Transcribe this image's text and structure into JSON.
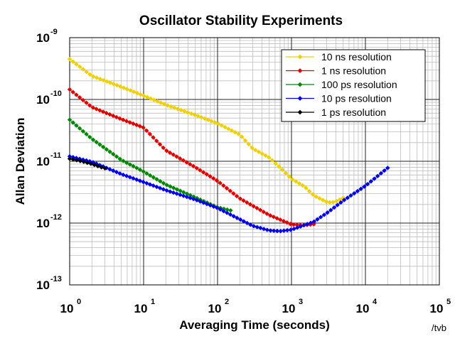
{
  "chart_data": {
    "type": "line",
    "title": "Oscillator Stability Experiments",
    "xlabel": "Averaging Time (seconds)",
    "ylabel": "Allan Deviation",
    "xscale": "log",
    "yscale": "log",
    "xlim": [
      1,
      100000
    ],
    "ylim": [
      1e-13,
      1e-09
    ],
    "x_ticks": [
      {
        "base": "10",
        "exp": "0"
      },
      {
        "base": "10",
        "exp": "1"
      },
      {
        "base": "10",
        "exp": "2"
      },
      {
        "base": "10",
        "exp": "3"
      },
      {
        "base": "10",
        "exp": "4"
      },
      {
        "base": "10",
        "exp": "5"
      }
    ],
    "y_ticks": [
      {
        "base": "10",
        "exp": "-13"
      },
      {
        "base": "10",
        "exp": "-12"
      },
      {
        "base": "10",
        "exp": "-11"
      },
      {
        "base": "10",
        "exp": "-10"
      },
      {
        "base": "10",
        "exp": "-9"
      }
    ],
    "grid": true,
    "legend_position": "top-right",
    "credit": "/tvb",
    "series": [
      {
        "name": "10 ns resolution",
        "color": "#f0d000",
        "x": [
          1,
          2,
          5,
          10,
          20,
          50,
          100,
          200,
          300,
          500,
          800,
          1000,
          1500,
          2000,
          3000,
          3500,
          4000,
          5000
        ],
        "y": [
          4.5e-10,
          2.4e-10,
          1.6e-10,
          1.15e-10,
          8.2e-11,
          5.6e-11,
          4.1e-11,
          2.7e-11,
          1.6e-11,
          1.15e-11,
          6.8e-12,
          5.2e-12,
          3.9e-12,
          2.8e-12,
          2.2e-12,
          2.15e-12,
          2.25e-12,
          2.55e-12
        ]
      },
      {
        "name": "1 ns resolution",
        "color": "#e00000",
        "x": [
          1,
          2,
          5,
          10,
          20,
          50,
          100,
          200,
          500,
          1000,
          1500,
          2000
        ],
        "y": [
          1.45e-10,
          7.5e-11,
          4.8e-11,
          3.5e-11,
          1.5e-11,
          8e-12,
          4.8e-12,
          2.5e-12,
          1.35e-12,
          9.5e-13,
          9.2e-13,
          9.6e-13
        ]
      },
      {
        "name": "100 ps resolution",
        "color": "#008800",
        "x": [
          1,
          2,
          5,
          10,
          20,
          50,
          100,
          150
        ],
        "y": [
          4.7e-11,
          2.3e-11,
          1.05e-11,
          6.8e-12,
          4.2e-12,
          2.6e-12,
          1.8e-12,
          1.6e-12
        ]
      },
      {
        "name": "10 ps resolution",
        "color": "#0000ee",
        "x": [
          1,
          2,
          5,
          10,
          20,
          50,
          100,
          200,
          300,
          500,
          700,
          1000,
          2000,
          3000,
          5000,
          10000,
          20000
        ],
        "y": [
          1.2e-11,
          9.8e-12,
          6.2e-12,
          4.6e-12,
          3.4e-12,
          2.4e-12,
          1.75e-12,
          1.15e-12,
          9e-13,
          7.6e-13,
          7.4e-13,
          7.8e-13,
          1.05e-12,
          1.45e-12,
          2.3e-12,
          4e-12,
          7.8e-12
        ]
      },
      {
        "name": "1 ps resolution",
        "color": "#000000",
        "x": [
          1,
          1.5,
          2,
          2.5,
          3
        ],
        "y": [
          1.1e-11,
          9.9e-12,
          9e-12,
          8.2e-12,
          7.7e-12
        ]
      }
    ]
  }
}
